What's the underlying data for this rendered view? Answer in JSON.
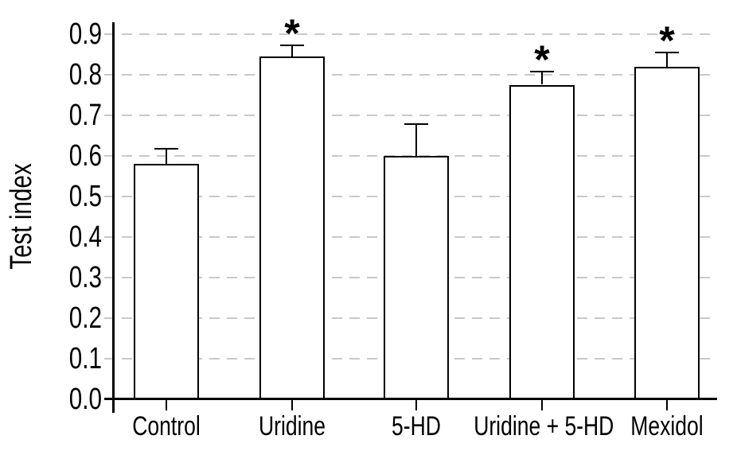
{
  "figure": {
    "background_color": "#ffffff",
    "text_color": "#000000"
  },
  "chart_data": {
    "type": "bar",
    "title": "",
    "xlabel": "",
    "ylabel": "Test index",
    "categories": [
      "Control",
      "Uridine",
      "5-HD",
      "Uridine + 5-HD",
      "Mexidol"
    ],
    "values": [
      0.58,
      0.845,
      0.6,
      0.775,
      0.82
    ],
    "error_bars_upper": [
      0.038,
      0.028,
      0.078,
      0.032,
      0.035
    ],
    "significance_markers": [
      "",
      "*",
      "",
      "*",
      "*"
    ],
    "ylim": [
      0.0,
      0.9
    ],
    "ytick_labels": [
      "0.0",
      "0.1",
      "0.2",
      "0.3",
      "0.4",
      "0.5",
      "0.6",
      "0.7",
      "0.8",
      "0.9"
    ],
    "grid": "horizontal-dashed",
    "legend": "none",
    "bar_fill_color": "#ffffff",
    "bar_stroke_color": "#000000",
    "gridline_color": "#c9c9c9"
  }
}
